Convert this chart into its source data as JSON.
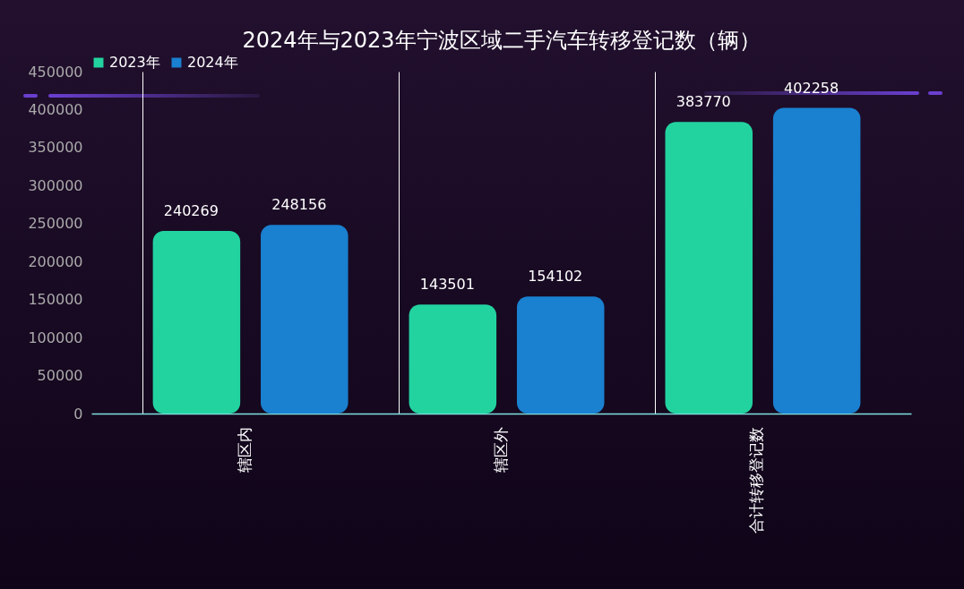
{
  "chart_data": {
    "type": "bar",
    "title": "2024年与2023年宁波区域二手汽车转移登记数（辆）",
    "categories": [
      "辖区内",
      "辖区外",
      "合计转移登记数"
    ],
    "series": [
      {
        "name": "2023年",
        "color": "#22d3a0",
        "values": [
          240269,
          143501,
          383770
        ]
      },
      {
        "name": "2024年",
        "color": "#1a80d0",
        "values": [
          248156,
          154102,
          402258
        ]
      }
    ],
    "ylim": [
      0,
      450000
    ],
    "yticks": [
      0,
      50000,
      100000,
      150000,
      200000,
      250000,
      300000,
      350000,
      400000,
      450000
    ],
    "grid": "x",
    "legend": "top",
    "data_labels": true
  }
}
